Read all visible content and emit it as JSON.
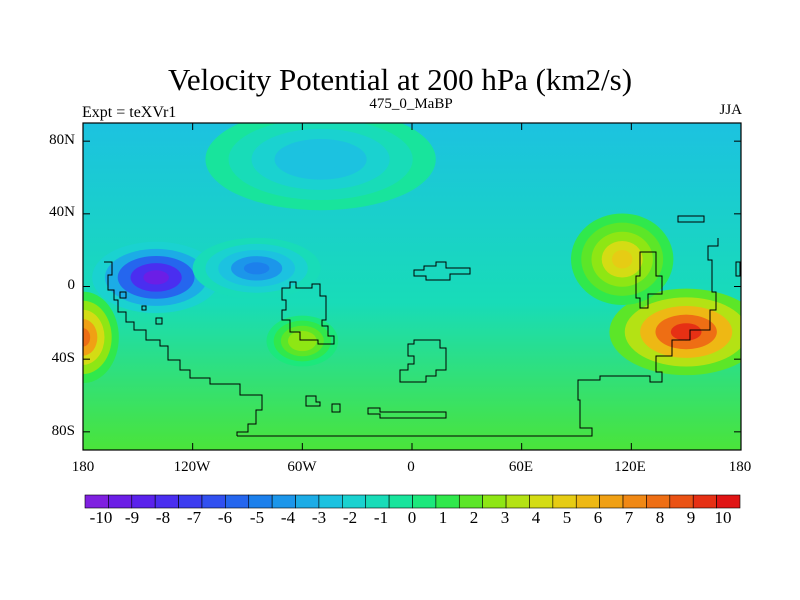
{
  "title": "Velocity Potential at 200 hPa (km2/s)",
  "left_label": "Expt = teXVr1",
  "center_label": "475_0_MaBP",
  "right_label": "JJA",
  "map": {
    "lon_range": [
      -180,
      180
    ],
    "lat_range": [
      -90,
      90
    ],
    "x_ticks": [
      {
        "lon": -180,
        "label": "180"
      },
      {
        "lon": -120,
        "label": "120W"
      },
      {
        "lon": -60,
        "label": "60W"
      },
      {
        "lon": 0,
        "label": "0"
      },
      {
        "lon": 60,
        "label": "60E"
      },
      {
        "lon": 120,
        "label": "120E"
      },
      {
        "lon": 180,
        "label": "180"
      }
    ],
    "y_ticks": [
      {
        "lat": 80,
        "label": "80N"
      },
      {
        "lat": 40,
        "label": "40N"
      },
      {
        "lat": 0,
        "label": "0"
      },
      {
        "lat": -40,
        "label": "40S"
      },
      {
        "lat": -80,
        "label": "80S"
      }
    ],
    "field_centers": [
      {
        "lon": -140,
        "lat": 5,
        "value": -10,
        "sx": 25,
        "sy": 14
      },
      {
        "lon": -85,
        "lat": 10,
        "value": -5,
        "sx": 25,
        "sy": 12
      },
      {
        "lon": 150,
        "lat": -25,
        "value": 10,
        "sx": 30,
        "sy": 17
      },
      {
        "lon": 115,
        "lat": 15,
        "value": 5,
        "sx": 20,
        "sy": 18
      },
      {
        "lon": -180,
        "lat": -28,
        "value": 8,
        "sx": 14,
        "sy": 18
      },
      {
        "lon": -60,
        "lat": -30,
        "value": 3,
        "sx": 14,
        "sy": 10
      },
      {
        "lon": -50,
        "lat": 70,
        "value": -3,
        "sx": 45,
        "sy": 20
      }
    ]
  },
  "colorbar": {
    "colors": [
      "#7f20e0",
      "#6b1ee6",
      "#5a22ec",
      "#4a2ef0",
      "#3c3cf0",
      "#3150f0",
      "#2566ee",
      "#1c80ec",
      "#1c96ea",
      "#1cace6",
      "#1cc2e0",
      "#1ad2d0",
      "#18dcb8",
      "#18e49c",
      "#1ce87c",
      "#30e84c",
      "#5ce628",
      "#8ee614",
      "#b4e214",
      "#d4dc14",
      "#e6cc14",
      "#eeb814",
      "#f0a014",
      "#f08814",
      "#ee6e14",
      "#ea5214",
      "#e63014",
      "#e01414"
    ],
    "labels": [
      "-10",
      "-9",
      "-8",
      "-7",
      "-6",
      "-5",
      "-4",
      "-3",
      "-2",
      "-1",
      "0",
      "1",
      "2",
      "3",
      "4",
      "5",
      "6",
      "7",
      "8",
      "9",
      "10"
    ]
  }
}
